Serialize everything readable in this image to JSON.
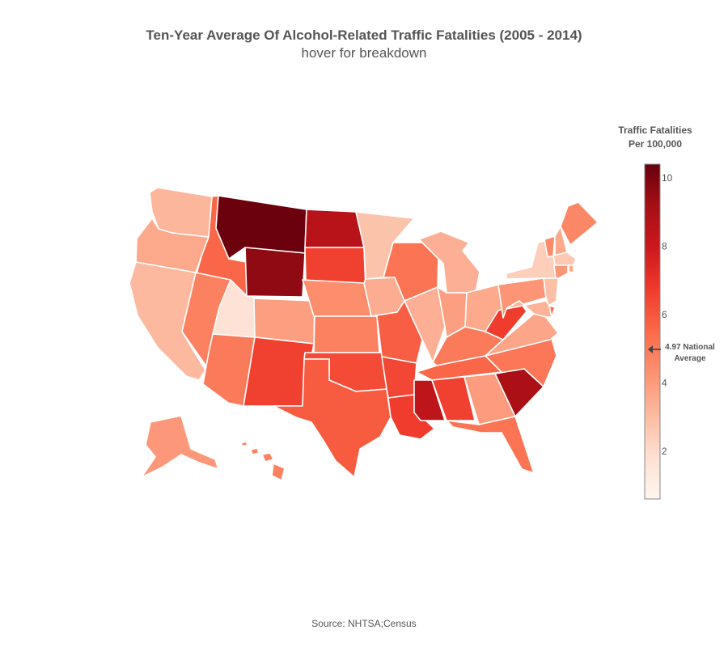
{
  "header": {
    "title": "Ten-Year Average Of Alcohol-Related Traffic Fatalities (2005 - 2014)",
    "subtitle": "hover for breakdown"
  },
  "colorbar": {
    "title_line1": "Traffic Fatalities",
    "title_line2": "Per 100,000",
    "min": 0.6,
    "max": 10.4,
    "ticks": [
      2,
      4,
      6,
      8,
      10
    ],
    "annotation_line1": "4.97 National",
    "annotation_line2": "Average",
    "annotation_value": 4.97,
    "colorscale": [
      "#fff5f0",
      "#fee0d2",
      "#fcbba1",
      "#fc9272",
      "#fb6a4a",
      "#ef3b2c",
      "#cb181d",
      "#a50f15",
      "#67000d"
    ]
  },
  "footer": {
    "source": "Source: NHTSA;Census"
  },
  "map_data": {
    "type": "choropleth",
    "scope": "usa",
    "states": [
      {
        "code": "WA",
        "value": 3.2
      },
      {
        "code": "OR",
        "value": 3.6
      },
      {
        "code": "CA",
        "value": 3.1
      },
      {
        "code": "ID",
        "value": 5.6
      },
      {
        "code": "NV",
        "value": 4.8
      },
      {
        "code": "UT",
        "value": 1.7
      },
      {
        "code": "AZ",
        "value": 5.0
      },
      {
        "code": "MT",
        "value": 10.3
      },
      {
        "code": "WY",
        "value": 9.6
      },
      {
        "code": "CO",
        "value": 3.9
      },
      {
        "code": "NM",
        "value": 6.6
      },
      {
        "code": "ND",
        "value": 8.6
      },
      {
        "code": "SD",
        "value": 6.6
      },
      {
        "code": "NE",
        "value": 4.4
      },
      {
        "code": "KS",
        "value": 4.8
      },
      {
        "code": "OK",
        "value": 6.3
      },
      {
        "code": "TX",
        "value": 5.9
      },
      {
        "code": "MN",
        "value": 2.8
      },
      {
        "code": "IA",
        "value": 3.5
      },
      {
        "code": "MO",
        "value": 5.8
      },
      {
        "code": "AR",
        "value": 6.4
      },
      {
        "code": "LA",
        "value": 6.7
      },
      {
        "code": "WI",
        "value": 5.2
      },
      {
        "code": "IL",
        "value": 3.4
      },
      {
        "code": "MI",
        "value": 3.4
      },
      {
        "code": "IN",
        "value": 3.9
      },
      {
        "code": "OH",
        "value": 3.6
      },
      {
        "code": "KY",
        "value": 5.0
      },
      {
        "code": "TN",
        "value": 5.6
      },
      {
        "code": "MS",
        "value": 8.4
      },
      {
        "code": "AL",
        "value": 6.6
      },
      {
        "code": "GA",
        "value": 4.0
      },
      {
        "code": "FL",
        "value": 5.2
      },
      {
        "code": "SC",
        "value": 9.0
      },
      {
        "code": "NC",
        "value": 5.1
      },
      {
        "code": "VA",
        "value": 3.7
      },
      {
        "code": "WV",
        "value": 6.7
      },
      {
        "code": "PA",
        "value": 4.2
      },
      {
        "code": "NY",
        "value": 2.4
      },
      {
        "code": "VT",
        "value": 4.5
      },
      {
        "code": "NH",
        "value": 3.6
      },
      {
        "code": "ME",
        "value": 4.6
      },
      {
        "code": "MA",
        "value": 2.6
      },
      {
        "code": "RI",
        "value": 3.6
      },
      {
        "code": "CT",
        "value": 4.1
      },
      {
        "code": "NJ",
        "value": 2.9
      },
      {
        "code": "DE",
        "value": 5.5
      },
      {
        "code": "MD",
        "value": 3.3
      },
      {
        "code": "DC",
        "value": 2.8
      },
      {
        "code": "AK",
        "value": 4.1
      },
      {
        "code": "HI",
        "value": 4.8
      }
    ]
  }
}
